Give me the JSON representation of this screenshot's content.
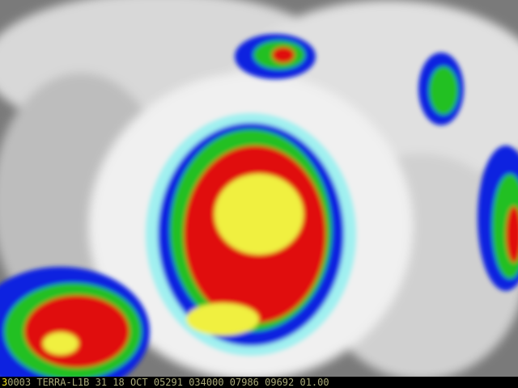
{
  "image": {
    "subject": "infrared-satellite-image",
    "palette": {
      "cold_top": "#f0f040",
      "red": "#e01010",
      "green": "#20c020",
      "blue": "#1020e0",
      "cyan": "#a0f0f0",
      "cloud": "#e8e8e8",
      "warm": "#606060"
    }
  },
  "caption": {
    "frame": "3",
    "header": "0003 TERRA-L1B 31 18 OCT 05291 034000 07986 09692 01.00"
  }
}
